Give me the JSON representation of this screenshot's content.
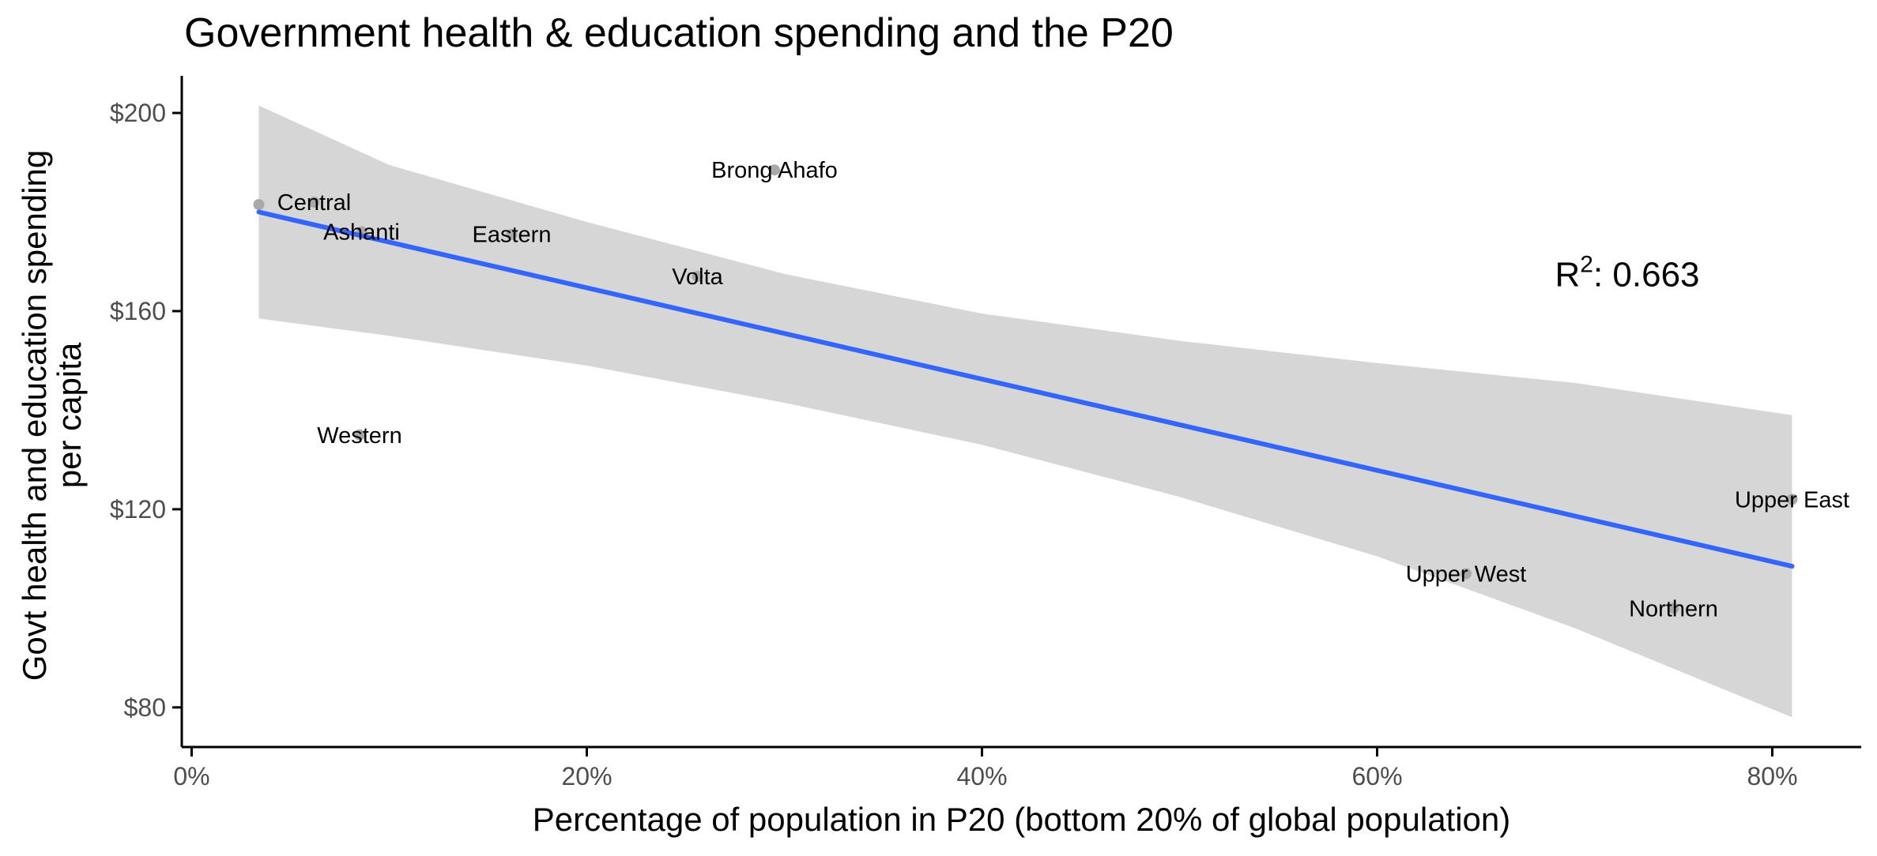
{
  "chart_data": {
    "type": "scatter",
    "title": "Government health & education spending and the P20",
    "xlabel": "Percentage of population in P20 (bottom 20% of global population)",
    "ylabel_lines": [
      "Govt health and education spending",
      "per capita"
    ],
    "xlim": [
      -0.005,
      0.845
    ],
    "ylim": [
      72,
      207.5
    ],
    "x_ticks": [
      0,
      0.2,
      0.4,
      0.6,
      0.8
    ],
    "x_tick_labels": [
      "0%",
      "20%",
      "40%",
      "60%",
      "80%"
    ],
    "y_ticks": [
      80,
      120,
      160,
      200
    ],
    "y_tick_labels": [
      "$80",
      "$120",
      "$160",
      "$200"
    ],
    "points": [
      {
        "label": "Brong Ahafo",
        "x": 0.295,
        "y": 188.5
      },
      {
        "label": "Central",
        "x": 0.062,
        "y": 182
      },
      {
        "label": "",
        "x": 0.034,
        "y": 181.5
      },
      {
        "label": "Ashanti",
        "x": 0.086,
        "y": 176
      },
      {
        "label": "Eastern",
        "x": 0.162,
        "y": 175.5
      },
      {
        "label": "Volta",
        "x": 0.256,
        "y": 167
      },
      {
        "label": "Western",
        "x": 0.085,
        "y": 135
      },
      {
        "label": "Upper East",
        "x": 0.81,
        "y": 122
      },
      {
        "label": "Upper West",
        "x": 0.645,
        "y": 107
      },
      {
        "label": "Northern",
        "x": 0.75,
        "y": 100
      }
    ],
    "trend_line": {
      "x": [
        0.034,
        0.81
      ],
      "y": [
        180,
        108.5
      ]
    },
    "confidence_band": {
      "x": [
        0.034,
        0.1,
        0.2,
        0.3,
        0.4,
        0.5,
        0.6,
        0.7,
        0.81
      ],
      "upper": [
        201.5,
        189.5,
        178,
        167.5,
        159.5,
        154,
        149.5,
        145.5,
        139
      ],
      "lower": [
        158.5,
        155,
        149,
        141.5,
        133,
        122.5,
        110.5,
        96,
        78
      ]
    },
    "annotation": {
      "base": "R",
      "sup": "2",
      "text": ": 0.663",
      "x": 0.69,
      "y": 165
    },
    "colors": {
      "trend": "#3366ff",
      "band": "#d6d6d6",
      "point": "#a9a9a9",
      "axis": "#000000",
      "tick_text": "#4d4d4d"
    },
    "grid": false,
    "legend": "none"
  }
}
